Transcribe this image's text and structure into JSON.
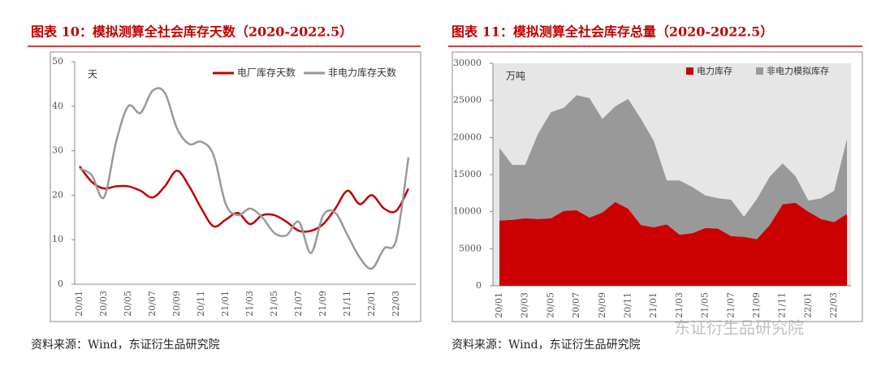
{
  "chart_data": [
    {
      "type": "line",
      "title": "图表 10：模拟测算全社会库存天数（2020-2022.5）",
      "unit": "天",
      "source": "资料来源：Wind，东证衍生品研究院",
      "categories": [
        "20/01",
        null,
        "20/03",
        null,
        "20/05",
        null,
        "20/07",
        null,
        "20/09",
        null,
        "20/11",
        null,
        "21/01",
        null,
        "21/03",
        null,
        "21/05",
        null,
        "21/07",
        null,
        "21/09",
        null,
        "21/11",
        null,
        "22/01",
        null,
        "22/03",
        null
      ],
      "series": [
        {
          "name": "电厂库存天数",
          "color": "#c00000",
          "values": [
            26.5,
            23,
            21.5,
            22,
            22,
            21,
            19.5,
            22,
            25.5,
            22,
            17,
            13,
            14.5,
            16,
            13.5,
            15.5,
            15.5,
            14,
            12,
            12,
            13.5,
            17,
            21,
            18,
            20,
            17,
            16.5,
            21.5
          ]
        },
        {
          "name": "非电力库存天数",
          "color": "#999999",
          "values": [
            26,
            24.5,
            19.5,
            32,
            40,
            38.5,
            43.5,
            43,
            35,
            31.5,
            32,
            29,
            18,
            15.5,
            17,
            15,
            11.5,
            11,
            14,
            7,
            15.5,
            16,
            11,
            6,
            3.5,
            8,
            10,
            28.5
          ]
        }
      ],
      "ylim": [
        0,
        50
      ],
      "yticks": [
        0,
        10,
        20,
        30,
        40,
        50
      ],
      "legend": "top-right"
    },
    {
      "type": "stacked-area",
      "title": "图表 11：模拟测算全社会库存总量（2020-2022.5）",
      "unit": "万吨",
      "source": "资料来源：Wind，东证衍生品研究院",
      "watermark": "东证衍生品研究院",
      "categories": [
        "20/01",
        null,
        "20/03",
        null,
        "20/05",
        null,
        "20/07",
        null,
        "20/09",
        null,
        "20/11",
        null,
        "21/01",
        null,
        "21/03",
        null,
        "21/05",
        null,
        "21/07",
        null,
        "21/09",
        null,
        "21/11",
        null,
        "22/01",
        null,
        "22/03",
        null
      ],
      "series": [
        {
          "name": "电力库存",
          "color": "#cc0000",
          "values": [
            8800,
            8900,
            9100,
            9000,
            9100,
            10100,
            10200,
            9200,
            9900,
            11300,
            10400,
            8200,
            7900,
            8300,
            6900,
            7100,
            7800,
            7700,
            6700,
            6600,
            6300,
            8200,
            11000,
            11200,
            10000,
            9000,
            8600,
            9700
          ]
        },
        {
          "name": "非电力模拟库存",
          "color": "#999999",
          "values": [
            9800,
            7400,
            7200,
            11500,
            14300,
            13900,
            15500,
            16100,
            12600,
            12900,
            14800,
            14300,
            11600,
            5900,
            7300,
            6200,
            4400,
            4100,
            4900,
            2700,
            5400,
            6500,
            5500,
            3600,
            1500,
            2800,
            4200,
            10100
          ]
        }
      ],
      "ylim": [
        0,
        30000
      ],
      "yticks": [
        0,
        5000,
        10000,
        15000,
        20000,
        25000,
        30000
      ],
      "legend": "top-left",
      "background": "#e6e6e6"
    }
  ]
}
